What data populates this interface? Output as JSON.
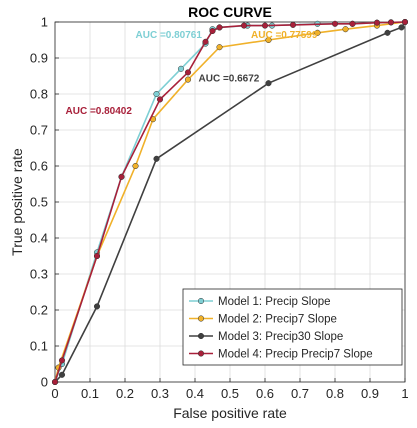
{
  "chart_data": {
    "type": "line",
    "title": "ROC CURVE",
    "xlabel": "False positive rate",
    "ylabel": "True positive rate",
    "xlim": [
      0,
      1
    ],
    "ylim": [
      0,
      1
    ],
    "xticks": [
      "0",
      "0.1",
      "0.2",
      "0.3",
      "0.4",
      "0.5",
      "0.6",
      "0.7",
      "0.8",
      "0.9",
      "1"
    ],
    "yticks": [
      "0",
      "0.1",
      "0.2",
      "0.3",
      "0.4",
      "0.5",
      "0.6",
      "0.7",
      "0.8",
      "0.9",
      "1"
    ],
    "grid": true,
    "legend_position": "bottom-right",
    "series": [
      {
        "name": "Model 1: Precip Slope",
        "color": "#7ecfd4",
        "x": [
          0,
          0.02,
          0.12,
          0.19,
          0.29,
          0.36,
          0.43,
          0.45,
          0.47,
          0.55,
          0.62,
          0.75,
          0.85,
          0.92,
          0.96,
          1.0
        ],
        "y": [
          0,
          0.05,
          0.36,
          0.57,
          0.8,
          0.87,
          0.94,
          0.98,
          0.985,
          0.99,
          0.99,
          0.995,
          0.995,
          0.998,
          0.999,
          1.0
        ]
      },
      {
        "name": "Model 2: Precip7 Slope",
        "color": "#f0b12a",
        "x": [
          0,
          0.01,
          0.12,
          0.23,
          0.28,
          0.38,
          0.47,
          0.61,
          0.75,
          0.83,
          0.92,
          1.0
        ],
        "y": [
          0,
          0.04,
          0.35,
          0.6,
          0.73,
          0.84,
          0.93,
          0.95,
          0.97,
          0.98,
          0.99,
          1.0
        ]
      },
      {
        "name": "Model 3: Precip30 Slope",
        "color": "#404040",
        "x": [
          0,
          0.02,
          0.12,
          0.29,
          0.61,
          0.95,
          0.99,
          1.0
        ],
        "y": [
          0,
          0.02,
          0.21,
          0.62,
          0.83,
          0.97,
          0.985,
          1.0
        ]
      },
      {
        "name": "Model 4: Precip Precip7 Slope",
        "color": "#a8203a",
        "x": [
          0,
          0.02,
          0.12,
          0.19,
          0.3,
          0.38,
          0.43,
          0.45,
          0.47,
          0.54,
          0.6,
          0.68,
          0.8,
          0.85,
          0.92,
          0.96,
          1.0
        ],
        "y": [
          0,
          0.06,
          0.35,
          0.57,
          0.785,
          0.86,
          0.945,
          0.975,
          0.985,
          0.99,
          0.99,
          0.992,
          0.995,
          0.995,
          0.998,
          0.999,
          1.0
        ]
      }
    ],
    "annotations": [
      {
        "text": "AUC =0.80761",
        "x": 0.23,
        "y": 0.955,
        "color": "#7ecfd4"
      },
      {
        "text": "AUC =0.77599",
        "x": 0.56,
        "y": 0.955,
        "color": "#f0b12a"
      },
      {
        "text": "AUC =0.6672",
        "x": 0.41,
        "y": 0.835,
        "color": "#404040"
      },
      {
        "text": "AUC =0.80402",
        "x": 0.03,
        "y": 0.745,
        "color": "#a8203a"
      }
    ]
  }
}
